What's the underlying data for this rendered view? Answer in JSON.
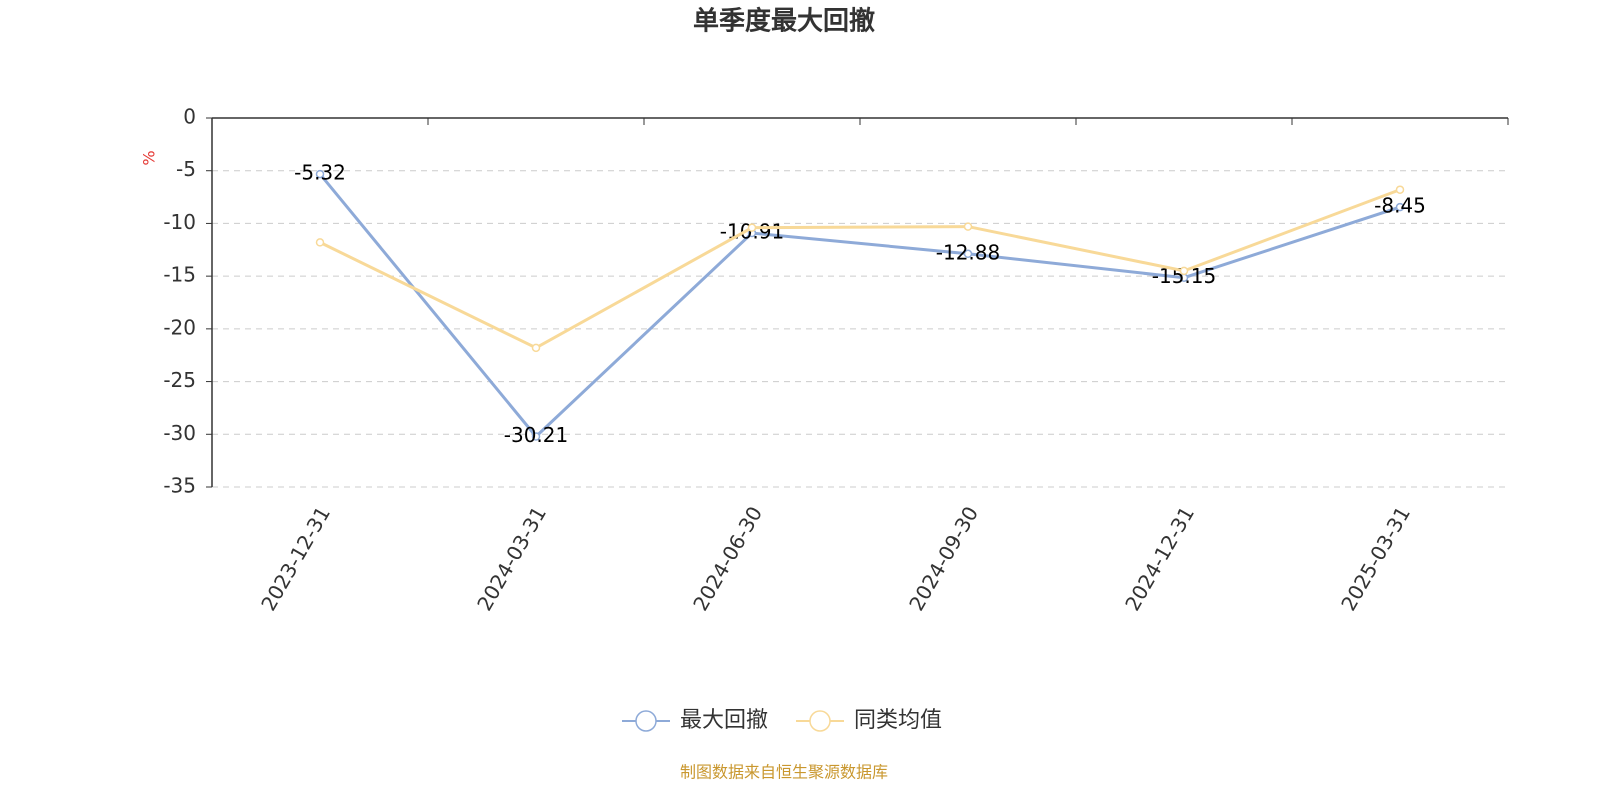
{
  "chart_data": {
    "type": "line",
    "title": "单季度最大回撤",
    "y_axis_label": "%",
    "categories": [
      "2023-12-31",
      "2024-03-31",
      "2024-06-30",
      "2024-09-30",
      "2024-12-31",
      "2025-03-31"
    ],
    "series": [
      {
        "name": "最大回撤",
        "color": "#8eaad8",
        "values": [
          -5.32,
          -30.21,
          -10.91,
          -12.88,
          -15.15,
          -8.45
        ],
        "data_labels": true
      },
      {
        "name": "同类均值",
        "color": "#f8d998",
        "values": [
          -11.8,
          -21.8,
          -10.4,
          -10.3,
          -14.5,
          -6.8
        ],
        "data_labels": false
      }
    ],
    "ylim": [
      -35,
      0
    ],
    "yticks": [
      0,
      -5,
      -10,
      -15,
      -20,
      -25,
      -30,
      -35
    ],
    "grid": true,
    "source": "制图数据来自恒生聚源数据库"
  }
}
